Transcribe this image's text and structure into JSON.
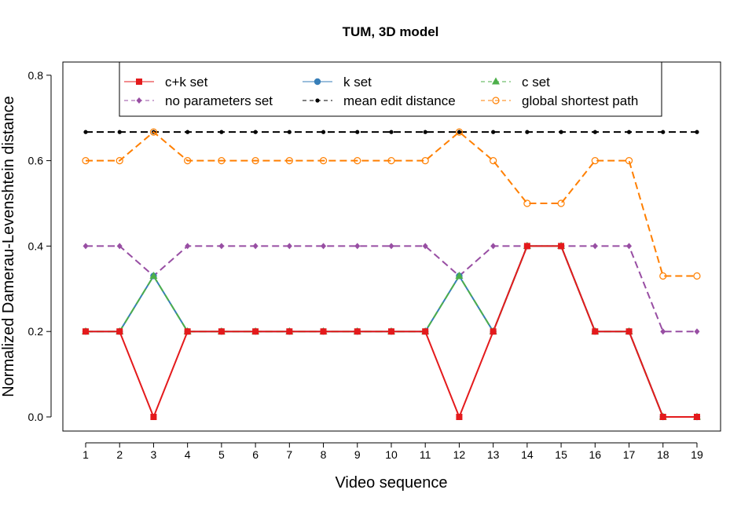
{
  "chart_data": {
    "type": "line",
    "title": "TUM, 3D model",
    "xlabel": "Video sequence",
    "ylabel": "Normalized Damerau-Levenshtein distance",
    "xlim": [
      1,
      19
    ],
    "ylim": [
      0,
      0.8
    ],
    "x": [
      1,
      2,
      3,
      4,
      5,
      6,
      7,
      8,
      9,
      10,
      11,
      12,
      13,
      14,
      15,
      16,
      17,
      18,
      19
    ],
    "x_tick_labels": [
      "1",
      "2",
      "3",
      "4",
      "5",
      "6",
      "7",
      "8",
      "9",
      "10",
      "11",
      "12",
      "13",
      "14",
      "15",
      "16",
      "17",
      "18",
      "19"
    ],
    "y_ticks": [
      0.0,
      0.2,
      0.4,
      0.6,
      0.8
    ],
    "y_tick_labels": [
      "0.0",
      "0.2",
      "0.4",
      "0.6",
      "0.8"
    ],
    "grid": false,
    "legend_position": "top",
    "series": [
      {
        "name": "mean edit distance",
        "color": "#000000",
        "dash": "dashed",
        "marker": "dot",
        "values": [
          0.667,
          0.667,
          0.667,
          0.667,
          0.667,
          0.667,
          0.667,
          0.667,
          0.667,
          0.667,
          0.667,
          0.667,
          0.667,
          0.667,
          0.667,
          0.667,
          0.667,
          0.667,
          0.667
        ]
      },
      {
        "name": "global shortest path",
        "color": "#FF7F00",
        "dash": "dashed",
        "marker": "open-circle",
        "values": [
          0.6,
          0.6,
          0.667,
          0.6,
          0.6,
          0.6,
          0.6,
          0.6,
          0.6,
          0.6,
          0.6,
          0.667,
          0.6,
          0.5,
          0.5,
          0.6,
          0.6,
          0.33,
          0.33
        ]
      },
      {
        "name": "no parameters set",
        "color": "#984EA3",
        "dash": "dashed",
        "marker": "diamond",
        "values": [
          0.4,
          0.4,
          0.33,
          0.4,
          0.4,
          0.4,
          0.4,
          0.4,
          0.4,
          0.4,
          0.4,
          0.33,
          0.4,
          0.4,
          0.4,
          0.4,
          0.4,
          0.2,
          0.2
        ]
      },
      {
        "name": "k set",
        "color": "#377EB8",
        "dash": "solid",
        "marker": "filled-circle",
        "values": [
          0.2,
          0.2,
          0.33,
          0.2,
          0.2,
          0.2,
          0.2,
          0.2,
          0.2,
          0.2,
          0.2,
          0.33,
          0.2,
          0.4,
          0.4,
          0.2,
          0.2,
          0.0,
          0.0
        ]
      },
      {
        "name": "c set",
        "color": "#4DAF4A",
        "dash": "dashed",
        "marker": "triangle",
        "values": [
          0.2,
          0.2,
          0.33,
          0.2,
          0.2,
          0.2,
          0.2,
          0.2,
          0.2,
          0.2,
          0.2,
          0.33,
          0.2,
          0.4,
          0.4,
          0.2,
          0.2,
          0.0,
          0.0
        ]
      },
      {
        "name": "c+k set",
        "color": "#E41A1C",
        "dash": "solid",
        "marker": "square",
        "values": [
          0.2,
          0.2,
          0.0,
          0.2,
          0.2,
          0.2,
          0.2,
          0.2,
          0.2,
          0.2,
          0.2,
          0.0,
          0.2,
          0.4,
          0.4,
          0.2,
          0.2,
          0.0,
          0.0
        ]
      }
    ],
    "legend_entries": [
      {
        "series": "c+k set"
      },
      {
        "series": "k set"
      },
      {
        "series": "c set"
      },
      {
        "series": "no parameters set"
      },
      {
        "series": "mean edit distance"
      },
      {
        "series": "global shortest path"
      }
    ]
  }
}
